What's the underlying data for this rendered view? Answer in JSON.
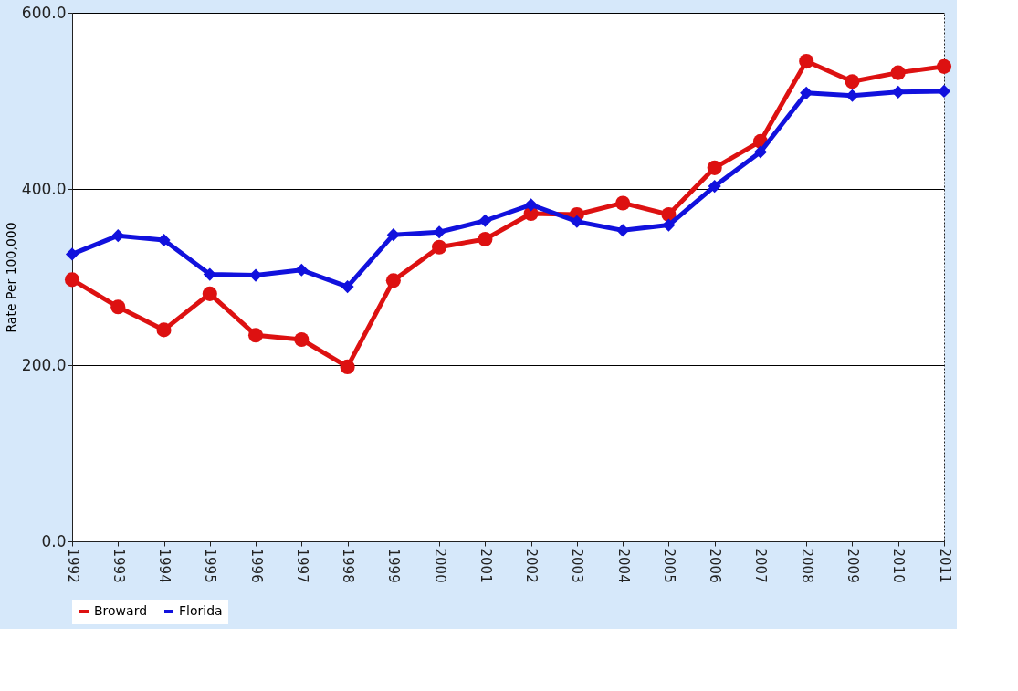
{
  "chart_data": {
    "type": "line",
    "ylabel": "Rate Per 100,000",
    "categories": [
      "1992",
      "1993",
      "1994",
      "1995",
      "1996",
      "1997",
      "1998",
      "1999",
      "2000",
      "2001",
      "2002",
      "2003",
      "2004",
      "2005",
      "2006",
      "2007",
      "2008",
      "2009",
      "2010",
      "2011"
    ],
    "series": [
      {
        "name": "Broward",
        "color": "#dd1111",
        "marker": "circle",
        "values": [
          297,
          266,
          240,
          281,
          234,
          229,
          198,
          296,
          334,
          343,
          372,
          371,
          384,
          371,
          424,
          454,
          545,
          522,
          532,
          539
        ]
      },
      {
        "name": "Florida",
        "color": "#1111dd",
        "marker": "diamond",
        "values": [
          326,
          347,
          342,
          303,
          302,
          308,
          289,
          348,
          351,
          364,
          382,
          363,
          353,
          359,
          403,
          442,
          509,
          506,
          510,
          511
        ]
      }
    ],
    "ylim": [
      0,
      600
    ],
    "yticks": [
      {
        "value": 0,
        "label": "0.0"
      },
      {
        "value": 200,
        "label": "200.0"
      },
      {
        "value": 400,
        "label": "400.0"
      },
      {
        "value": 600,
        "label": "600.0"
      }
    ],
    "grid": "y",
    "legend": "bottom",
    "line_style": "solid"
  }
}
